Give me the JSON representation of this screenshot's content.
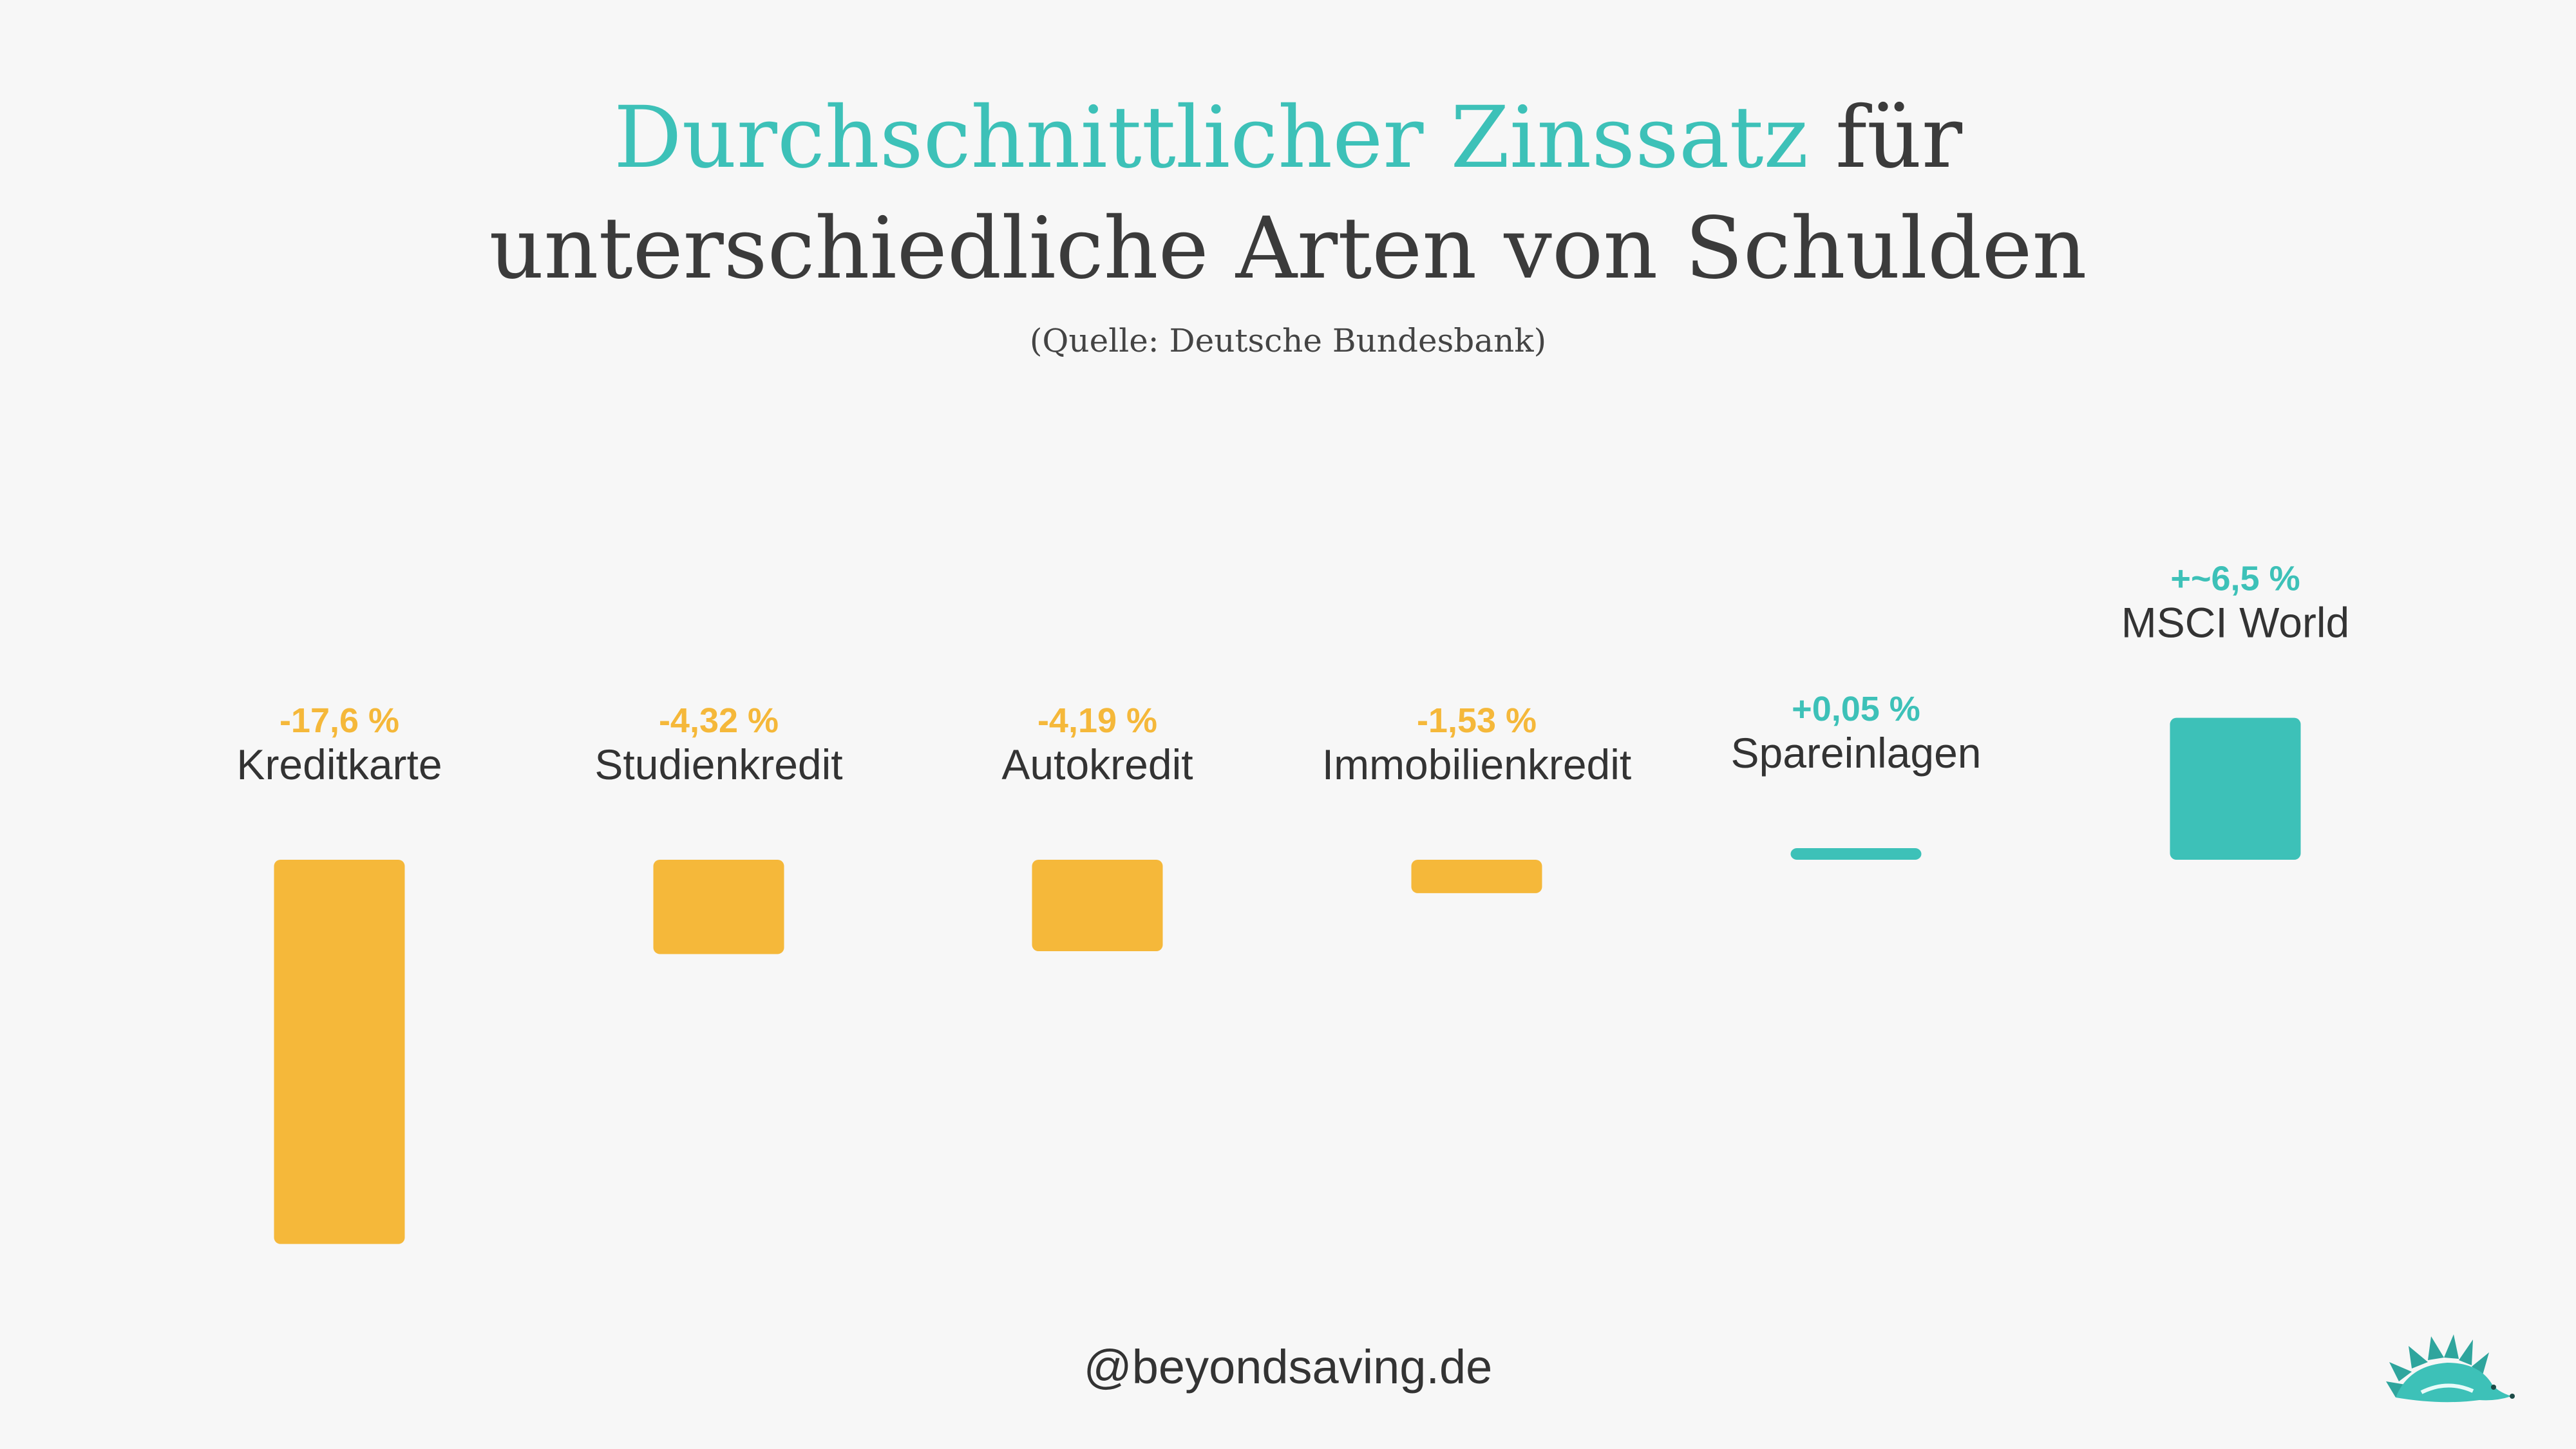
{
  "header": {
    "title_accent": "Durchschnittlicher Zinssatz",
    "title_rest_line1": " für",
    "title_line2": "unterschiedliche Arten von Schulden",
    "source": "(Quelle: Deutsche Bundesbank)"
  },
  "footer": {
    "handle": "@beyondsaving.de"
  },
  "logo": {
    "icon": "hedgehog-icon"
  },
  "colors": {
    "negative": "#f5b83a",
    "positive": "#3dc1b8",
    "label": "#333333"
  },
  "chart_data": {
    "type": "bar",
    "categories": [
      "Kreditkarte",
      "Studienkredit",
      "Autokredit",
      "Immobilienkredit",
      "Spareinlagen",
      "MSCI World"
    ],
    "values": [
      -17.6,
      -4.32,
      -4.19,
      -1.53,
      0.05,
      6.5
    ],
    "value_labels": [
      "-17,6 %",
      "-4,32 %",
      "-4,19 %",
      "-1,53 %",
      "+0,05 %",
      "+~6,5 %"
    ],
    "title": "Durchschnittlicher Zinssatz für unterschiedliche Arten von Schulden",
    "subtitle": "(Quelle: Deutsche Bundesbank)",
    "xlabel": "",
    "ylabel": "",
    "grid": false,
    "legend": "none"
  }
}
